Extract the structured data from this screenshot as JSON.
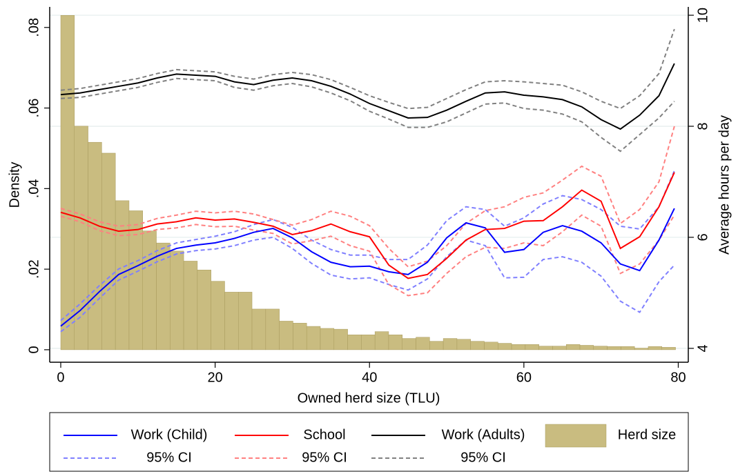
{
  "chart_data": {
    "type": "combo",
    "xlabel": "Owned herd size (TLU)",
    "ylabel": "Density",
    "y2label": "Average hours per day",
    "xlim": [
      -1.43,
      81.3
    ],
    "xticks": [
      0,
      20,
      40,
      60,
      80
    ],
    "ylim": [
      -0.0031,
      0.0851
    ],
    "yticks": [
      0,
      {
        "value": 0.02,
        "label": ".02"
      },
      {
        "value": 0.04,
        "label": ".04"
      },
      {
        "value": 0.06,
        "label": ".06"
      },
      {
        "value": 0.08,
        "label": ".08"
      }
    ],
    "y2lim": [
      3.75,
      10.15
    ],
    "y2ticks": [
      4,
      6,
      8,
      10
    ],
    "y2grid": true,
    "legend": "bottom",
    "histogram": {
      "name": "Herd size",
      "color": "#c9bc80",
      "bins": [
        0,
        1.77,
        3.54,
        5.31,
        7.08,
        8.85,
        10.62,
        12.39,
        14.16,
        15.93,
        17.7,
        19.47,
        21.24,
        23.01,
        24.78,
        26.55,
        28.32,
        30.09,
        31.86,
        33.63,
        35.4,
        37.17,
        38.94,
        40.71,
        42.48,
        44.25,
        46.02,
        47.79,
        49.56,
        51.33,
        53.1,
        54.87,
        56.64,
        58.41,
        60.18,
        61.95,
        63.72,
        65.49,
        67.26,
        69.03,
        70.8,
        72.57,
        74.34,
        76.11,
        77.88,
        79.65
      ],
      "values": [
        0.083,
        0.0555,
        0.0515,
        0.0488,
        0.037,
        0.0345,
        0.0295,
        0.0265,
        0.0245,
        0.022,
        0.0198,
        0.017,
        0.0143,
        0.0143,
        0.0101,
        0.0101,
        0.0071,
        0.0066,
        0.0058,
        0.0053,
        0.0051,
        0.0037,
        0.0037,
        0.0045,
        0.0037,
        0.0028,
        0.0031,
        0.0021,
        0.0028,
        0.0026,
        0.0021,
        0.0019,
        0.0016,
        0.0013,
        0.0013,
        0.0009,
        0.0009,
        0.0013,
        0.0011,
        0.0009,
        0.0008,
        0.0008,
        0.0004,
        0.0008,
        0.0006
      ]
    },
    "x": [
      0,
      2.5,
      5,
      7.5,
      10,
      12.5,
      15,
      17.5,
      20,
      22.5,
      25,
      27.5,
      30,
      32.5,
      35,
      37.5,
      40,
      42.5,
      45,
      47.5,
      50,
      52.5,
      55,
      57.5,
      60,
      62.5,
      65,
      67.5,
      70,
      72.5,
      75,
      77.5,
      79.5
    ],
    "series": [
      {
        "name": "Work (Child)",
        "color": "#0000ff",
        "axis": "y2",
        "values": [
          4.4,
          4.68,
          5.02,
          5.33,
          5.49,
          5.66,
          5.8,
          5.86,
          5.9,
          5.98,
          6.09,
          6.16,
          5.99,
          5.74,
          5.55,
          5.47,
          5.48,
          5.38,
          5.33,
          5.55,
          5.99,
          6.26,
          6.17,
          5.73,
          5.78,
          6.09,
          6.21,
          6.11,
          5.9,
          5.52,
          5.4,
          5.95,
          6.52
        ],
        "ci": {
          "name": "95% CI",
          "color": "#7f7fff",
          "upper": [
            4.5,
            4.8,
            5.13,
            5.43,
            5.58,
            5.76,
            5.9,
            5.96,
            6.02,
            6.1,
            6.23,
            6.32,
            6.18,
            5.95,
            5.78,
            5.68,
            5.68,
            5.6,
            5.6,
            5.86,
            6.3,
            6.55,
            6.5,
            6.2,
            6.35,
            6.6,
            6.75,
            6.68,
            6.5,
            6.2,
            6.15,
            6.55,
            7.2
          ],
          "lower": [
            4.3,
            4.56,
            4.9,
            5.23,
            5.39,
            5.56,
            5.7,
            5.76,
            5.79,
            5.85,
            5.95,
            6.0,
            5.8,
            5.53,
            5.32,
            5.25,
            5.27,
            5.15,
            5.05,
            5.25,
            5.65,
            5.95,
            5.85,
            5.27,
            5.28,
            5.6,
            5.65,
            5.55,
            5.3,
            4.85,
            4.65,
            5.2,
            5.5
          ]
        }
      },
      {
        "name": "School",
        "color": "#ff0000",
        "axis": "y2",
        "values": [
          6.45,
          6.35,
          6.2,
          6.11,
          6.14,
          6.24,
          6.28,
          6.35,
          6.31,
          6.33,
          6.27,
          6.2,
          6.05,
          6.12,
          6.24,
          6.1,
          6.01,
          5.5,
          5.26,
          5.33,
          5.62,
          5.95,
          6.14,
          6.16,
          6.29,
          6.3,
          6.55,
          6.85,
          6.65,
          5.8,
          6.01,
          6.55,
          7.17
        ],
        "ci": {
          "name": "95% CI",
          "color": "#ff8080",
          "upper": [
            6.52,
            6.42,
            6.28,
            6.2,
            6.23,
            6.34,
            6.4,
            6.47,
            6.44,
            6.47,
            6.42,
            6.32,
            6.22,
            6.32,
            6.47,
            6.38,
            6.21,
            5.8,
            5.47,
            5.57,
            5.85,
            6.25,
            6.48,
            6.55,
            6.72,
            6.8,
            7.03,
            7.28,
            7.1,
            6.25,
            6.5,
            7.0,
            8.0
          ],
          "lower": [
            6.38,
            6.28,
            6.12,
            6.03,
            6.05,
            6.14,
            6.17,
            6.23,
            6.19,
            6.2,
            6.13,
            6.07,
            5.88,
            5.94,
            6.02,
            5.85,
            5.75,
            5.15,
            4.95,
            5.0,
            5.35,
            5.65,
            5.82,
            5.8,
            5.9,
            5.85,
            6.1,
            6.4,
            6.2,
            5.35,
            5.52,
            5.95,
            6.4
          ]
        }
      },
      {
        "name": "Work (Adults)",
        "color": "#000000",
        "axis": "y2",
        "values": [
          8.57,
          8.6,
          8.66,
          8.72,
          8.78,
          8.87,
          8.94,
          8.92,
          8.9,
          8.8,
          8.75,
          8.83,
          8.87,
          8.82,
          8.72,
          8.58,
          8.41,
          8.28,
          8.15,
          8.16,
          8.29,
          8.45,
          8.6,
          8.62,
          8.56,
          8.53,
          8.48,
          8.35,
          8.12,
          7.95,
          8.2,
          8.55,
          9.13
        ],
        "ci": {
          "name": "95% CI",
          "color": "#808080",
          "upper": [
            8.65,
            8.68,
            8.74,
            8.8,
            8.86,
            8.95,
            9.02,
            9.0,
            8.98,
            8.9,
            8.85,
            8.93,
            8.97,
            8.93,
            8.84,
            8.7,
            8.55,
            8.43,
            8.32,
            8.34,
            8.5,
            8.66,
            8.8,
            8.82,
            8.8,
            8.77,
            8.74,
            8.62,
            8.45,
            8.32,
            8.55,
            8.95,
            9.75
          ],
          "lower": [
            8.5,
            8.52,
            8.58,
            8.64,
            8.7,
            8.79,
            8.86,
            8.84,
            8.82,
            8.7,
            8.65,
            8.73,
            8.77,
            8.71,
            8.6,
            8.46,
            8.27,
            8.13,
            7.98,
            7.98,
            8.08,
            8.24,
            8.4,
            8.42,
            8.32,
            8.29,
            8.22,
            8.08,
            7.8,
            7.55,
            7.85,
            8.15,
            8.45
          ]
        }
      }
    ]
  }
}
